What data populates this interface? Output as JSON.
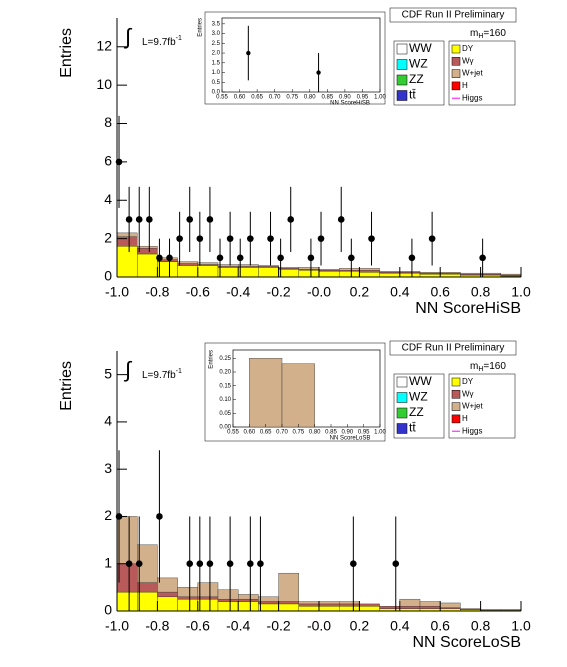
{
  "chart_data": [
    {
      "type": "histogram",
      "title": "CDF Run II Preliminary",
      "mass_label": [
        "m",
        "H",
        "=160"
      ],
      "lumi": [
        "∫",
        "L=9.7fb",
        "-1"
      ],
      "xlabel": "NN ScoreHiSB",
      "ylabel": "Entries",
      "xlim": [
        -1,
        1
      ],
      "xticks": [
        {
          "value": -1,
          "label": "-1.0"
        },
        -0.8,
        -0.6,
        -0.4,
        -0.2,
        {
          "value": 0,
          "label": "-0.0"
        },
        0.2,
        0.4,
        0.6,
        0.8,
        {
          "value": 1,
          "label": "1.0"
        }
      ],
      "ylim": [
        0,
        13.5
      ],
      "yticks": [
        0,
        2,
        4,
        6,
        8,
        10,
        12
      ],
      "bins": [
        -1,
        -0.9,
        -0.8,
        -0.7,
        -0.6,
        -0.5,
        -0.4,
        -0.3,
        -0.2,
        -0.1,
        0,
        0.1,
        0.2,
        0.3,
        0.4,
        0.5,
        0.6,
        0.7,
        0.8,
        0.9,
        1
      ],
      "series": [
        {
          "name": "WW",
          "color": "#ffffff"
        },
        {
          "name": "WZ",
          "color": "#00ffff"
        },
        {
          "name": "ZZ",
          "color": "#33cc33"
        },
        {
          "name": "tt̄",
          "color": "#3333cc"
        },
        {
          "name": "DY",
          "color": "#ffff00",
          "values": [
            1.6,
            1.2,
            0.8,
            0.6,
            0.6,
            0.5,
            0.5,
            0.5,
            0.4,
            0.35,
            0.3,
            0.3,
            0.25,
            0.2,
            0.2,
            0.15,
            0.15,
            0.1,
            0.1,
            0.05
          ]
        },
        {
          "name": "Wγ",
          "color": "#b85a5a",
          "values": [
            0.5,
            0.3,
            0.1,
            0.1,
            0.05,
            0.05,
            0.05,
            0.05,
            0.05,
            0.05,
            0.05,
            0.05,
            0.1,
            0.05,
            0.05,
            0.05,
            0.05,
            0.05,
            0.05,
            0.05
          ]
        },
        {
          "name": "W+jet",
          "color": "#d2b08c",
          "values": [
            0.2,
            0.1,
            0.1,
            0.1,
            0.1,
            0.1,
            0.1,
            0.05,
            0.05,
            0.1,
            0.05,
            0.1,
            0.1,
            0.05,
            0.05,
            0.05,
            0.05,
            0.05,
            0.05,
            0.05
          ]
        },
        {
          "name": "H",
          "color": "#ff0000"
        },
        {
          "name": "Higgs",
          "color": "#ff00ff",
          "style": "line"
        }
      ],
      "points": {
        "x": [
          -0.99,
          -0.94,
          -0.89,
          -0.84,
          -0.79,
          -0.74,
          -0.69,
          -0.64,
          -0.59,
          -0.54,
          -0.49,
          -0.44,
          -0.39,
          -0.34,
          -0.24,
          -0.19,
          -0.14,
          -0.04,
          0.01,
          0.11,
          0.16,
          0.26,
          0.46,
          0.56,
          0.81
        ],
        "values": [
          6,
          3,
          3,
          3,
          1,
          1,
          2,
          3,
          2,
          3,
          1,
          2,
          1,
          2,
          2,
          1,
          3,
          1,
          2,
          3,
          1,
          2,
          1,
          2,
          1
        ],
        "errors": [
          2.4,
          1.7,
          1.7,
          1.7,
          1,
          1,
          1.4,
          1.7,
          1.4,
          1.7,
          1,
          1.4,
          1,
          1.4,
          1.4,
          1,
          1.7,
          1,
          1.4,
          1.7,
          1,
          1.4,
          1,
          1.4,
          1
        ]
      }
    },
    {
      "type": "histogram",
      "xlabel": "NN ScoreHiSB",
      "ylabel": "Entries",
      "xlim": [
        0.55,
        1
      ],
      "xticks": [
        {
          "value": 0.55,
          "label": "0.55"
        },
        {
          "value": 0.6,
          "label": "0.60"
        },
        {
          "value": 0.65,
          "label": "0.65"
        },
        {
          "value": 0.7,
          "label": "0.70"
        },
        {
          "value": 0.75,
          "label": "0.75"
        },
        {
          "value": 0.8,
          "label": "0.80"
        },
        {
          "value": 0.85,
          "label": "0.85"
        },
        {
          "value": 0.9,
          "label": "0.90"
        },
        {
          "value": 0.95,
          "label": "0.95"
        },
        {
          "value": 1,
          "label": "1.00"
        }
      ],
      "ylim": [
        0,
        3.8
      ],
      "yticks": [
        {
          "value": 0,
          "label": "0.0"
        },
        0.5,
        {
          "value": 1,
          "label": "1.0"
        },
        1.5,
        {
          "value": 2,
          "label": "2.0"
        },
        2.5,
        {
          "value": 3,
          "label": "3.0"
        },
        3.5
      ],
      "points": {
        "x": [
          0.625,
          0.825
        ],
        "values": [
          2,
          1
        ],
        "errors": [
          1.4,
          1
        ]
      }
    },
    {
      "type": "histogram",
      "title": "CDF Run II Preliminary",
      "mass_label": [
        "m",
        "H",
        "=160"
      ],
      "lumi": [
        "∫",
        "L=9.7fb",
        "-1"
      ],
      "xlabel": "NN ScoreLoSB",
      "ylabel": "Entries",
      "xlim": [
        -1,
        1
      ],
      "xticks": [
        {
          "value": -1,
          "label": "-1.0"
        },
        -0.8,
        -0.6,
        -0.4,
        -0.2,
        {
          "value": 0,
          "label": "-0.0"
        },
        0.2,
        0.4,
        0.6,
        0.8,
        {
          "value": 1,
          "label": "1.0"
        }
      ],
      "ylim": [
        0,
        5.5
      ],
      "yticks": [
        0,
        1,
        2,
        3,
        4,
        5
      ],
      "bins": [
        -1,
        -0.9,
        -0.8,
        -0.7,
        -0.6,
        -0.5,
        -0.4,
        -0.3,
        -0.2,
        -0.1,
        0,
        0.1,
        0.2,
        0.3,
        0.4,
        0.5,
        0.6,
        0.7,
        0.8,
        0.9,
        1
      ],
      "series": [
        {
          "name": "WW",
          "color": "#ffffff"
        },
        {
          "name": "WZ",
          "color": "#00ffff"
        },
        {
          "name": "ZZ",
          "color": "#33cc33"
        },
        {
          "name": "tt̄",
          "color": "#3333cc"
        },
        {
          "name": "DY",
          "color": "#ffff00",
          "values": [
            0.4,
            0.4,
            0.3,
            0.25,
            0.25,
            0.2,
            0.2,
            0.15,
            0.15,
            0.1,
            0.1,
            0.1,
            0.1,
            0.05,
            0.05,
            0.05,
            0.05,
            0.03,
            0.02,
            0.02
          ]
        },
        {
          "name": "Wγ",
          "color": "#b85a5a",
          "values": [
            0.6,
            0.2,
            0.1,
            0.05,
            0.05,
            0.05,
            0.05,
            0.05,
            0.05,
            0.05,
            0.05,
            0.05,
            0.05,
            0.05,
            0.05,
            0.05,
            0.02,
            0.02,
            0.01,
            0.01
          ]
        },
        {
          "name": "W+jet",
          "color": "#d2b08c",
          "values": [
            1,
            0.8,
            0.3,
            0.2,
            0.3,
            0.2,
            0.1,
            0.1,
            0.6,
            0.05,
            0.05,
            0.05,
            0,
            0,
            0.15,
            0.1,
            0.1,
            0,
            0,
            0
          ]
        },
        {
          "name": "H",
          "color": "#ff0000"
        },
        {
          "name": "Higgs",
          "color": "#ff00ff",
          "style": "line"
        }
      ],
      "points": {
        "x": [
          -0.99,
          -0.94,
          -0.89,
          -0.79,
          -0.64,
          -0.59,
          -0.54,
          -0.44,
          -0.34,
          -0.29,
          0.17,
          0.38
        ],
        "values": [
          2,
          1,
          1,
          2,
          1,
          1,
          1,
          1,
          1,
          1,
          1,
          1
        ],
        "errors": [
          1.4,
          1,
          1,
          1.4,
          1,
          1,
          1,
          1,
          1,
          1,
          1,
          1
        ]
      }
    },
    {
      "type": "histogram",
      "xlabel": "NN ScoreLoSB",
      "ylabel": "Entries",
      "xlim": [
        0.55,
        1
      ],
      "xticks": [
        {
          "value": 0.55,
          "label": "0.55"
        },
        {
          "value": 0.6,
          "label": "0.60"
        },
        {
          "value": 0.65,
          "label": "0.65"
        },
        {
          "value": 0.7,
          "label": "0.70"
        },
        {
          "value": 0.75,
          "label": "0.75"
        },
        {
          "value": 0.8,
          "label": "0.80"
        },
        {
          "value": 0.85,
          "label": "0.85"
        },
        {
          "value": 0.9,
          "label": "0.90"
        },
        {
          "value": 0.95,
          "label": "0.95"
        },
        {
          "value": 1,
          "label": "1.00"
        }
      ],
      "ylim": [
        0,
        0.28
      ],
      "yticks": [
        {
          "value": 0,
          "label": "0.00"
        },
        0.05,
        {
          "value": 0.1,
          "label": "0.10"
        },
        0.15,
        {
          "value": 0.2,
          "label": "0.20"
        },
        0.25
      ],
      "bins": [
        0.6,
        0.7,
        0.8
      ],
      "series": [
        {
          "color": "#d2b08c",
          "values": [
            0.25,
            0.23
          ]
        }
      ]
    }
  ]
}
